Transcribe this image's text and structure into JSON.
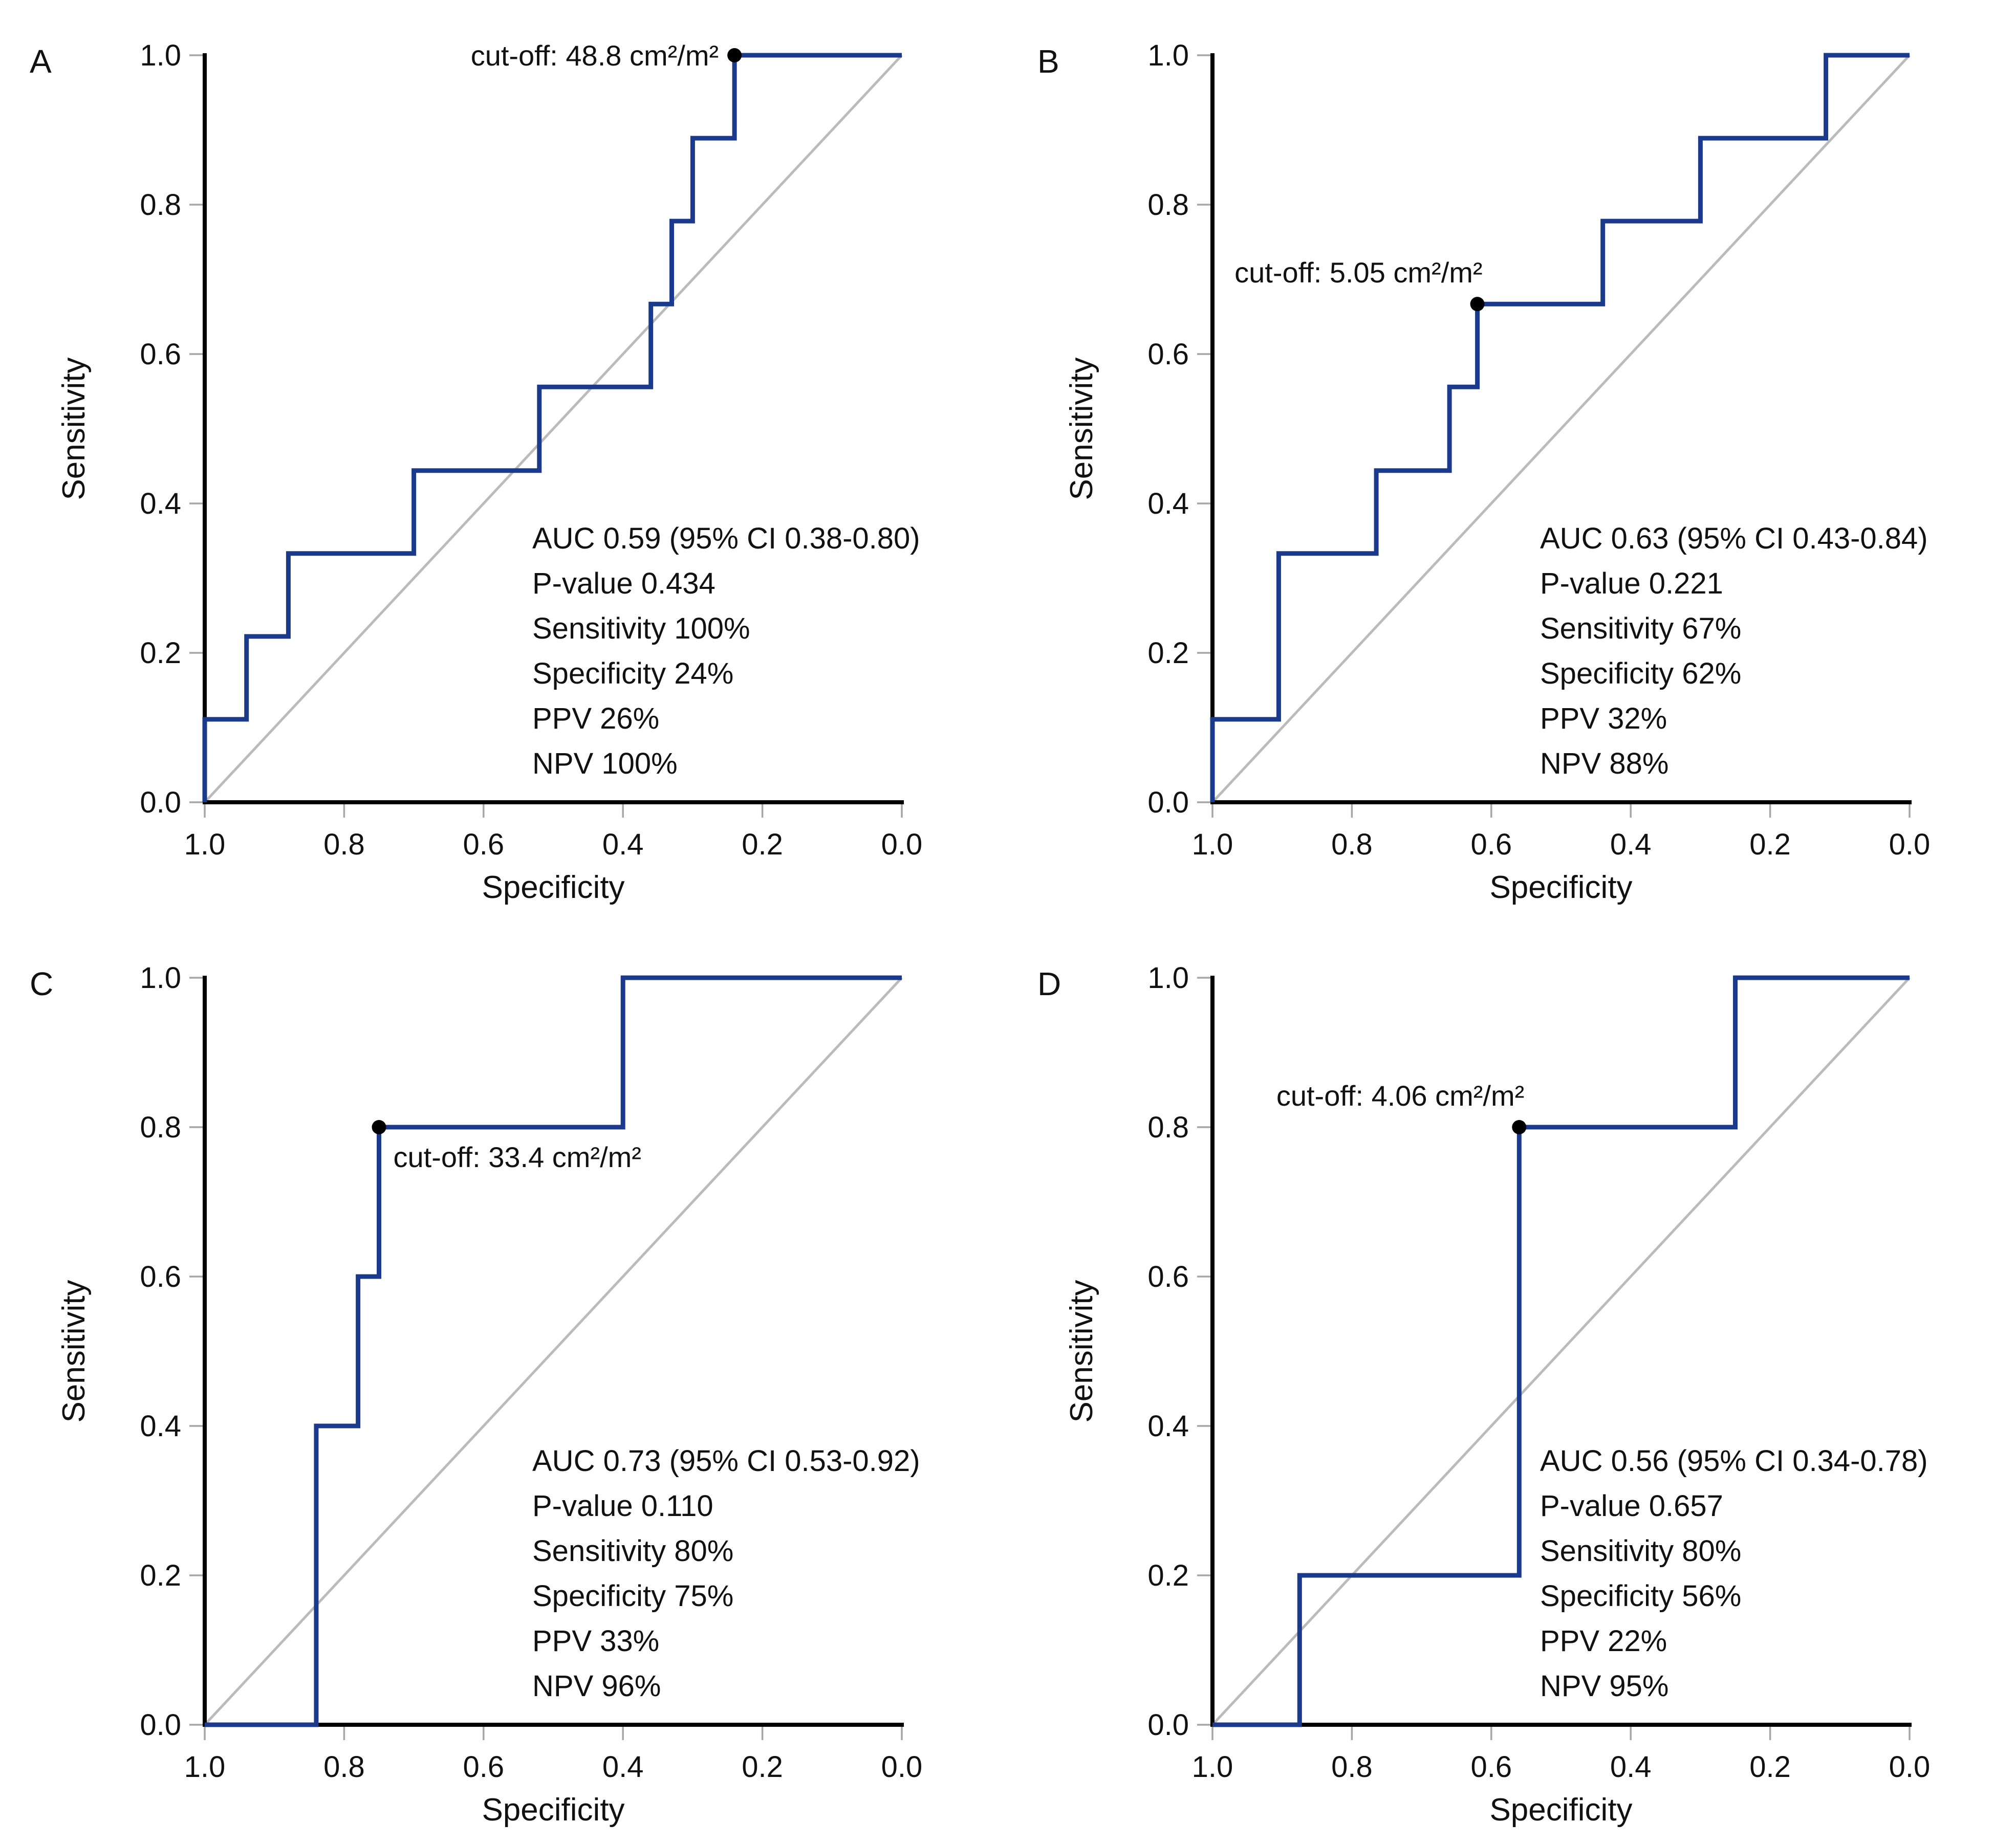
{
  "figure": {
    "xlabel": "Specificity",
    "ylabel": "Sensitivity",
    "x_ticks": [
      "1.0",
      "0.8",
      "0.6",
      "0.4",
      "0.2",
      "0.0"
    ],
    "y_ticks": [
      "0.0",
      "0.2",
      "0.4",
      "0.6",
      "0.8",
      "1.0"
    ],
    "x_tick_values": [
      1.0,
      0.8,
      0.6,
      0.4,
      0.2,
      0.0
    ],
    "y_tick_values": [
      0.0,
      0.2,
      0.4,
      0.6,
      0.8,
      1.0
    ],
    "x_axis_reversed": true,
    "x_range": [
      1.0,
      0.0
    ],
    "y_range": [
      0.0,
      1.0
    ],
    "grid": false,
    "legend": false,
    "colors": {
      "roc": "#1b3a8c",
      "diagonal": "#bbbbbb",
      "axis": "#000000",
      "tick": "#a6a6a6",
      "text": "#111111",
      "marker": "#000000"
    }
  },
  "chart_data": [
    {
      "type": "line",
      "panel_label": "A",
      "cutoff_label": "cut-off: 48.8 cm²/m²",
      "cutoff_point": {
        "specificity": 0.24,
        "sensitivity": 1.0
      },
      "cutoff_label_placement": "left",
      "stats": [
        "AUC 0.59 (95% CI 0.38-0.80)",
        "P-value 0.434",
        "Sensitivity 100%",
        "Specificity 24%",
        "PPV 26%",
        "NPV 100%"
      ],
      "diagonal_reference": true,
      "roc_curve": [
        [
          1.0,
          0.0
        ],
        [
          1.0,
          0.111
        ],
        [
          0.94,
          0.111
        ],
        [
          0.94,
          0.222
        ],
        [
          0.88,
          0.222
        ],
        [
          0.88,
          0.333
        ],
        [
          0.7,
          0.333
        ],
        [
          0.7,
          0.444
        ],
        [
          0.52,
          0.444
        ],
        [
          0.52,
          0.556
        ],
        [
          0.36,
          0.556
        ],
        [
          0.36,
          0.667
        ],
        [
          0.33,
          0.667
        ],
        [
          0.33,
          0.778
        ],
        [
          0.3,
          0.778
        ],
        [
          0.3,
          0.889
        ],
        [
          0.24,
          0.889
        ],
        [
          0.24,
          1.0
        ],
        [
          0.0,
          1.0
        ]
      ]
    },
    {
      "type": "line",
      "panel_label": "B",
      "cutoff_label": "cut-off: 5.05 cm²/m²",
      "cutoff_point": {
        "specificity": 0.62,
        "sensitivity": 0.667
      },
      "cutoff_label_placement": "above",
      "stats": [
        "AUC 0.63 (95% CI 0.43-0.84)",
        "P-value 0.221",
        "Sensitivity 67%",
        "Specificity 62%",
        "PPV 32%",
        "NPV 88%"
      ],
      "diagonal_reference": true,
      "roc_curve": [
        [
          1.0,
          0.0
        ],
        [
          1.0,
          0.111
        ],
        [
          0.905,
          0.111
        ],
        [
          0.905,
          0.333
        ],
        [
          0.765,
          0.333
        ],
        [
          0.765,
          0.444
        ],
        [
          0.66,
          0.444
        ],
        [
          0.66,
          0.556
        ],
        [
          0.62,
          0.556
        ],
        [
          0.62,
          0.667
        ],
        [
          0.44,
          0.667
        ],
        [
          0.44,
          0.778
        ],
        [
          0.3,
          0.778
        ],
        [
          0.3,
          0.889
        ],
        [
          0.12,
          0.889
        ],
        [
          0.12,
          1.0
        ],
        [
          0.0,
          1.0
        ]
      ]
    },
    {
      "type": "line",
      "panel_label": "C",
      "cutoff_label": "cut-off: 33.4 cm²/m²",
      "cutoff_point": {
        "specificity": 0.75,
        "sensitivity": 0.8
      },
      "cutoff_label_placement": "below-right",
      "stats": [
        "AUC 0.73 (95% CI 0.53-0.92)",
        "P-value 0.110",
        "Sensitivity 80%",
        "Specificity 75%",
        "PPV 33%",
        "NPV 96%"
      ],
      "diagonal_reference": true,
      "roc_curve": [
        [
          1.0,
          0.0
        ],
        [
          0.84,
          0.0
        ],
        [
          0.84,
          0.4
        ],
        [
          0.78,
          0.4
        ],
        [
          0.78,
          0.6
        ],
        [
          0.75,
          0.6
        ],
        [
          0.75,
          0.8
        ],
        [
          0.4,
          0.8
        ],
        [
          0.4,
          1.0
        ],
        [
          0.0,
          1.0
        ]
      ]
    },
    {
      "type": "line",
      "panel_label": "D",
      "cutoff_label": "cut-off: 4.06 cm²/m²",
      "cutoff_point": {
        "specificity": 0.56,
        "sensitivity": 0.8
      },
      "cutoff_label_placement": "above",
      "stats": [
        "AUC 0.56 (95% CI 0.34-0.78)",
        "P-value 0.657",
        "Sensitivity 80%",
        "Specificity 56%",
        "PPV 22%",
        "NPV 95%"
      ],
      "diagonal_reference": true,
      "roc_curve": [
        [
          1.0,
          0.0
        ],
        [
          0.875,
          0.0
        ],
        [
          0.875,
          0.2
        ],
        [
          0.56,
          0.2
        ],
        [
          0.56,
          0.8
        ],
        [
          0.25,
          0.8
        ],
        [
          0.25,
          1.0
        ],
        [
          0.0,
          1.0
        ]
      ]
    }
  ]
}
